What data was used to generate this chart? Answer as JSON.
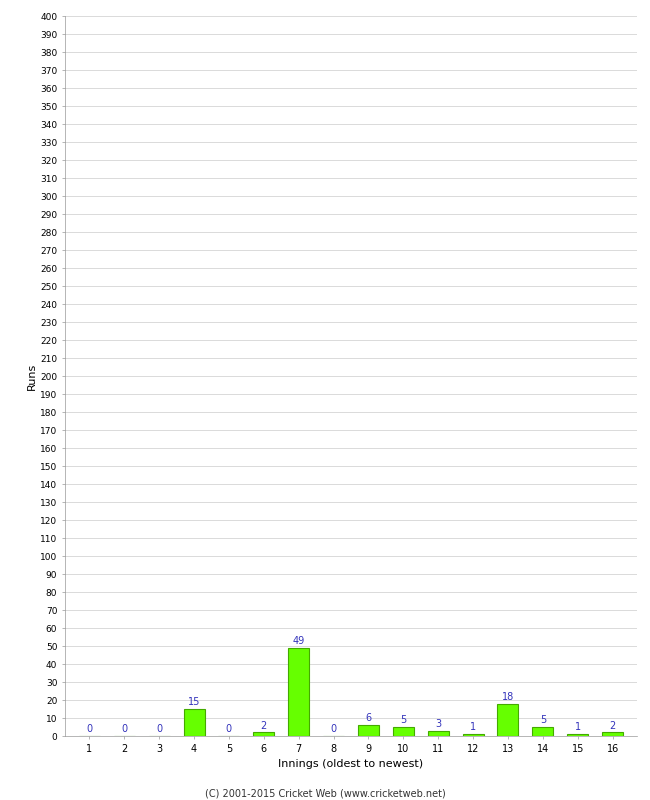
{
  "xlabel": "Innings (oldest to newest)",
  "ylabel": "Runs",
  "categories": [
    1,
    2,
    3,
    4,
    5,
    6,
    7,
    8,
    9,
    10,
    11,
    12,
    13,
    14,
    15,
    16
  ],
  "values": [
    0,
    0,
    0,
    15,
    0,
    2,
    49,
    0,
    6,
    5,
    3,
    1,
    18,
    5,
    1,
    2
  ],
  "bar_color": "#66ff00",
  "bar_edge_color": "#44aa00",
  "label_color": "#3333bb",
  "ylim": [
    0,
    400
  ],
  "ytick_step": 10,
  "background_color": "#ffffff",
  "grid_color": "#cccccc",
  "footer": "(C) 2001-2015 Cricket Web (www.cricketweb.net)"
}
